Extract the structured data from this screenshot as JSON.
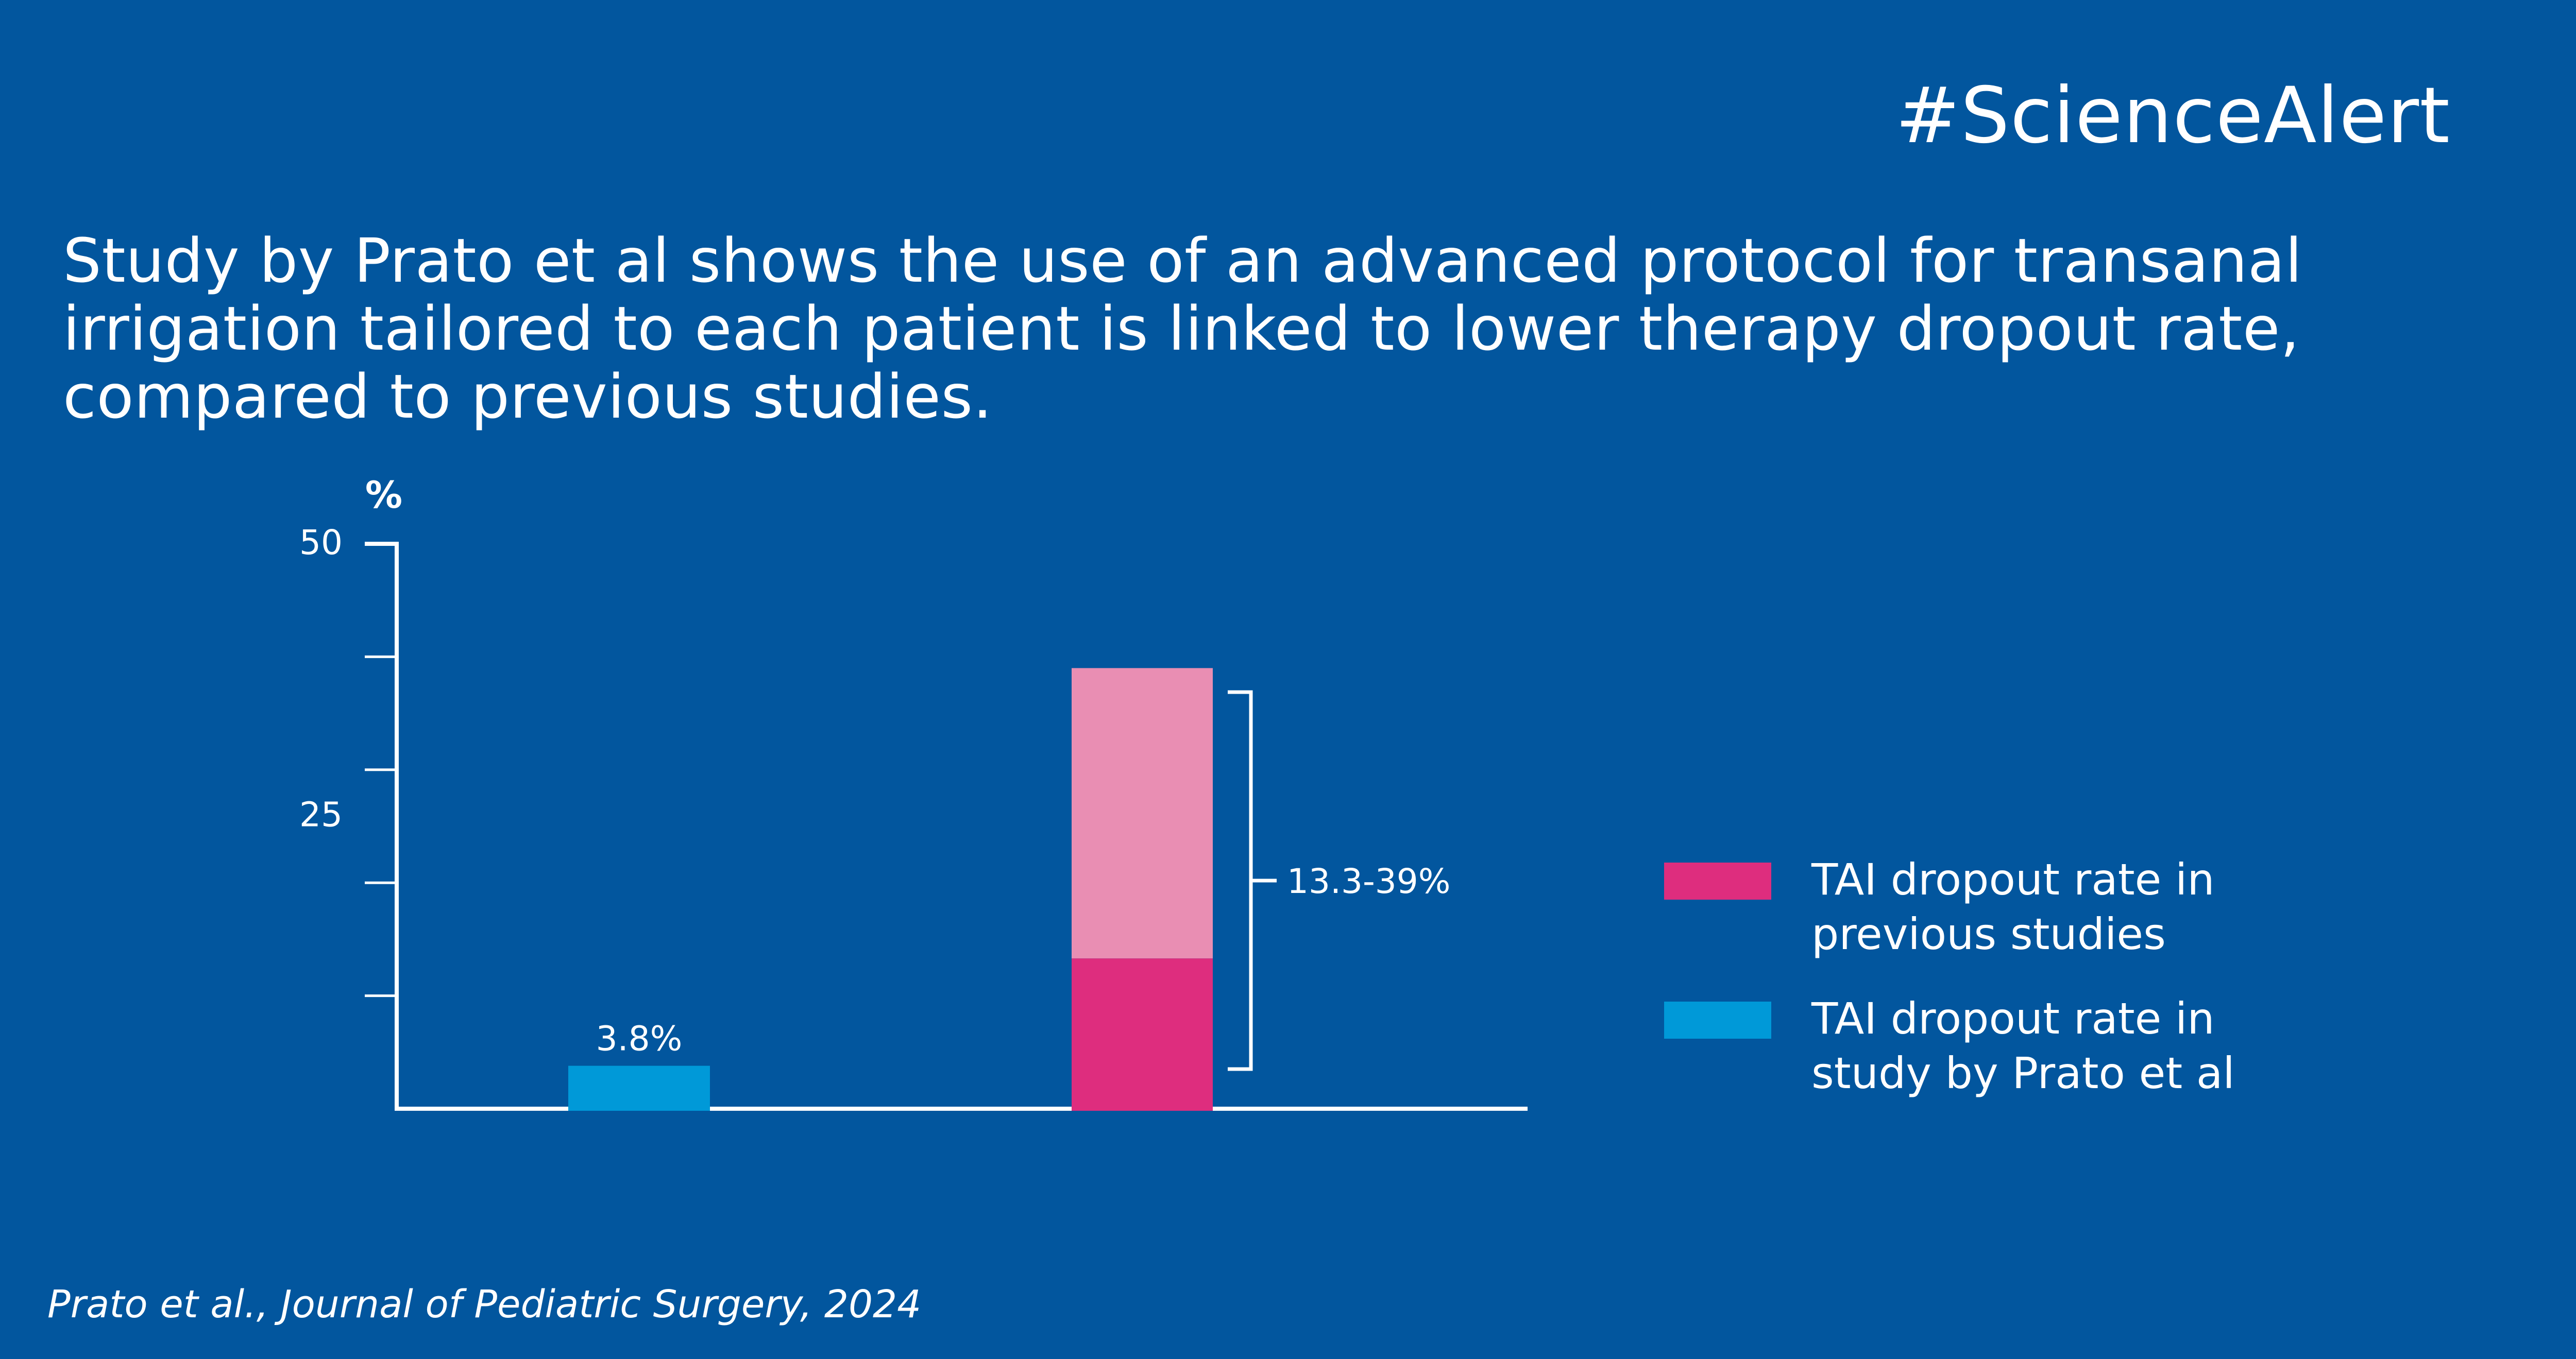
{
  "brand": "#ScienceAlert",
  "headline": {
    "lines": [
      "Study by Prato et al shows the use of an advanced protocol for transanal",
      "irrigation tailored to each patient is linked to lower therapy dropout rate,",
      "compared to previous studies."
    ]
  },
  "colors": {
    "background": "#02569e",
    "prato": "#0099d8",
    "previous_low": "#de2d7e",
    "previous_range": "#e98eb3",
    "axis": "#ffffff"
  },
  "chart_data": {
    "type": "bar",
    "title": "",
    "xlabel": "",
    "ylabel": "%",
    "ylim": [
      0,
      50
    ],
    "yticks": [
      0,
      10,
      20,
      30,
      40,
      50
    ],
    "ytick_labels": [
      {
        "value": 50,
        "label": "50"
      },
      {
        "value": 25,
        "label": "25"
      }
    ],
    "grid": false,
    "categories": [
      "TAI dropout rate in study by Prato et al",
      "TAI dropout rate in previous studies"
    ],
    "bars": [
      {
        "name": "TAI dropout rate in study by Prato et al",
        "value": 3.8,
        "color_key": "prato",
        "data_label": "3.8%"
      },
      {
        "name": "TAI dropout rate in previous studies",
        "range_low": 13.3,
        "range_high": 39,
        "color_key": "previous_low",
        "range_color_key": "previous_range",
        "data_label": "13.3-39%"
      }
    ],
    "legend": {
      "placement": "right",
      "entries": [
        {
          "lines": [
            "TAI dropout rate in",
            "previous studies"
          ],
          "color_key": "previous_low"
        },
        {
          "lines": [
            "TAI dropout rate in",
            "study by Prato et al"
          ],
          "color_key": "prato"
        }
      ]
    }
  },
  "citation": "Prato et al., Journal of Pediatric Surgery, 2024"
}
